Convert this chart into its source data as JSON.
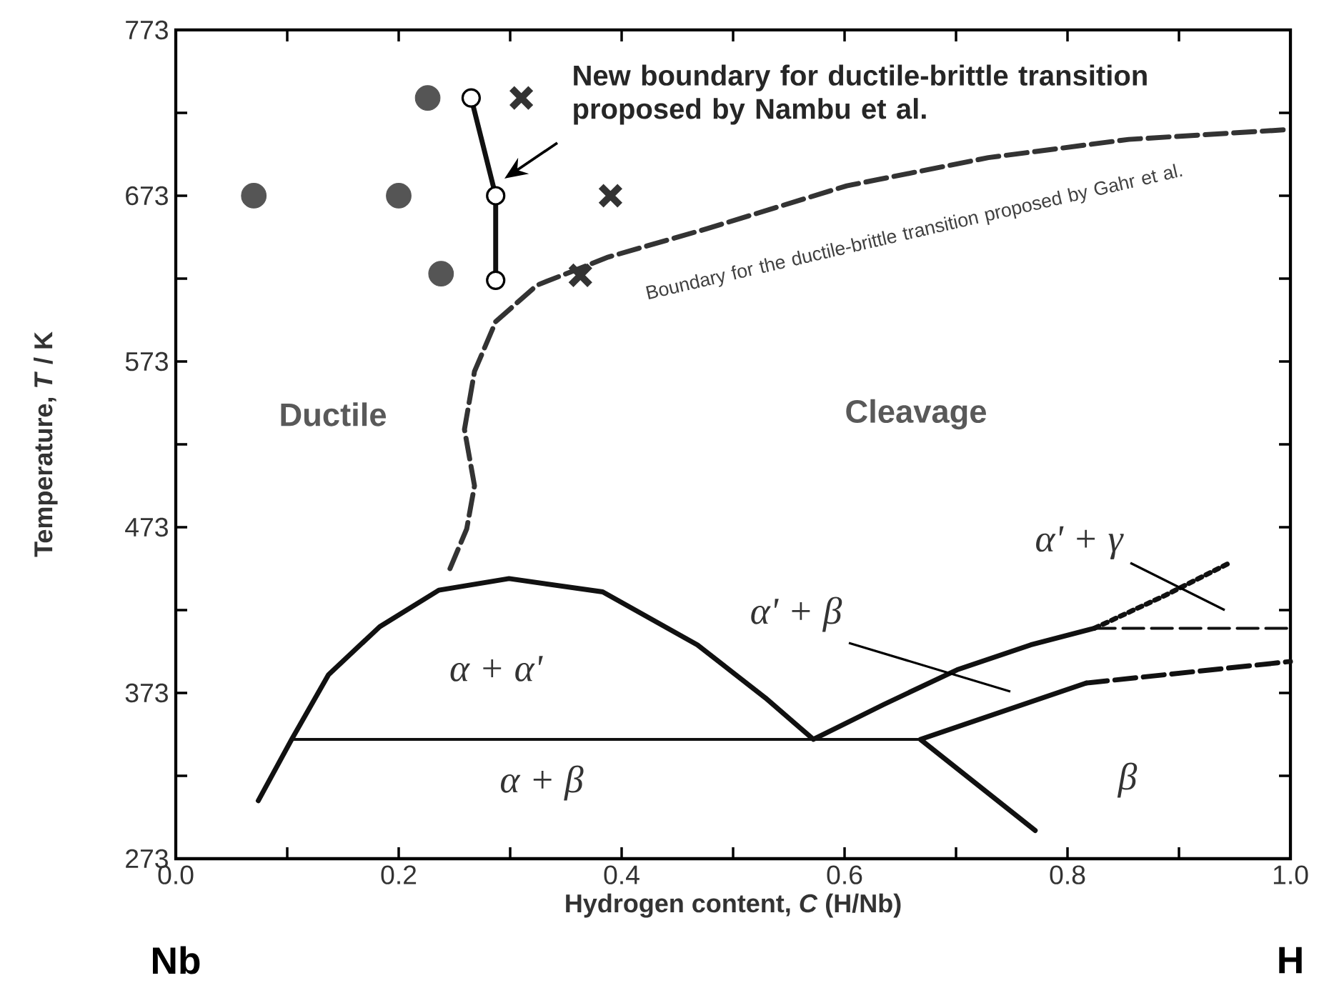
{
  "chart_data": {
    "type": "line",
    "xlabel": "Hydrogen content, *C* (H/Nb)",
    "ylabel": "Temperature, *T* / K",
    "xlim": [
      0.0,
      1.0
    ],
    "ylim": [
      273,
      773
    ],
    "xticks": [
      {
        "value": 0.0,
        "label": "0.0"
      },
      {
        "value": 0.1,
        "label": null
      },
      {
        "value": 0.2,
        "label": "0.2"
      },
      {
        "value": 0.3,
        "label": null
      },
      {
        "value": 0.4,
        "label": "0.4"
      },
      {
        "value": 0.5,
        "label": null
      },
      {
        "value": 0.6,
        "label": "0.6"
      },
      {
        "value": 0.7,
        "label": null
      },
      {
        "value": 0.8,
        "label": "0.8"
      },
      {
        "value": 0.9,
        "label": null
      },
      {
        "value": 1.0,
        "label": "1.0"
      }
    ],
    "yticks": [
      273,
      {
        "value": 323,
        "label": null
      },
      373,
      {
        "value": 423,
        "label": null
      },
      473,
      {
        "value": 523,
        "label": null
      },
      573,
      {
        "value": 623,
        "label": null
      },
      673,
      {
        "value": 723,
        "label": null
      },
      773
    ],
    "grid": false,
    "series": [
      {
        "color": "#111111",
        "x": [
          0.074,
          0.104,
          0.137,
          0.183,
          0.236,
          0.299,
          0.383,
          0.468,
          0.529,
          0.572,
          0.635,
          0.701,
          0.767,
          0.824
        ],
        "values": [
          308,
          345,
          384,
          413,
          435,
          442,
          434,
          402,
          370,
          345,
          366,
          387,
          402,
          412
        ]
      },
      {
        "color": "#111111",
        "line_style": "dotted",
        "x": [
          0.824,
          0.888,
          0.947
        ],
        "values": [
          412,
          432,
          452
        ]
      },
      {
        "color": "#111111",
        "line_style": "dashed",
        "x": [
          0.824,
          1.0
        ],
        "values": [
          412,
          412
        ]
      },
      {
        "color": "#111111",
        "x": [
          0.104,
          0.668
        ],
        "values": [
          345,
          345
        ]
      },
      {
        "color": "#111111",
        "x": [
          0.771,
          0.668,
          0.817
        ],
        "values": [
          290,
          345,
          379
        ]
      },
      {
        "color": "#111111",
        "line_style": "dashed",
        "x": [
          0.817,
          1.0
        ],
        "values": [
          379,
          392
        ]
      },
      {
        "color": "#333333",
        "line_style": "dashed",
        "x": [
          0.246,
          0.261,
          0.268,
          0.259,
          0.268,
          0.287,
          0.324,
          0.388,
          0.476,
          0.602,
          0.729,
          0.855,
          1.0
        ],
        "values": [
          448,
          472,
          498,
          532,
          567,
          597,
          619,
          636,
          653,
          679,
          696,
          707,
          713
        ]
      },
      {
        "color": "#111111",
        "marker": "circle",
        "x": [
          0.265,
          0.287,
          0.287
        ],
        "values": [
          732,
          673,
          622
        ]
      },
      {
        "type": "scatter",
        "color": "#555555",
        "marker": "circle",
        "x": [
          0.07,
          0.2,
          0.226,
          0.238
        ],
        "values": [
          673,
          673,
          732,
          626
        ]
      },
      {
        "type": "scatter",
        "color": "#333333",
        "marker": "cross",
        "x": [
          0.31,
          0.39,
          0.363
        ],
        "values": [
          732,
          673,
          625
        ]
      }
    ],
    "annotations": [
      "New boundary for ductile-brittle transition proposed by Nambu et al.",
      "Boundary for the ductile-brittle transition proposed by Gahr et al.",
      "Ductile",
      "Cleavage",
      "α + α'",
      "α' + β",
      "α' + γ",
      "α + β",
      "β",
      "Nb",
      "H"
    ]
  }
}
